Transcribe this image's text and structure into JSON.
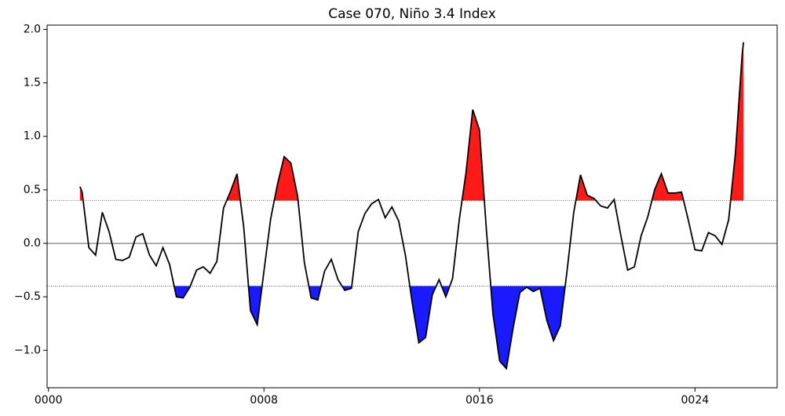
{
  "chart_data": {
    "type": "line",
    "title": "Case 070, Niño 3.4 Index",
    "x": [
      1.17,
      1.25,
      1.5,
      1.75,
      2.0,
      2.25,
      2.5,
      2.75,
      3.0,
      3.25,
      3.5,
      3.75,
      4.0,
      4.25,
      4.5,
      4.75,
      5.0,
      5.25,
      5.5,
      5.75,
      6.0,
      6.25,
      6.5,
      6.75,
      7.0,
      7.25,
      7.5,
      7.75,
      8.0,
      8.25,
      8.5,
      8.75,
      9.0,
      9.25,
      9.5,
      9.75,
      10.0,
      10.25,
      10.5,
      10.75,
      11.0,
      11.25,
      11.5,
      11.75,
      12.0,
      12.25,
      12.5,
      12.75,
      13.0,
      13.25,
      13.5,
      13.75,
      14.0,
      14.25,
      14.5,
      14.75,
      15.0,
      15.25,
      15.5,
      15.75,
      16.0,
      16.25,
      16.5,
      16.75,
      17.0,
      17.25,
      17.5,
      17.75,
      18.0,
      18.25,
      18.5,
      18.75,
      19.0,
      19.25,
      19.5,
      19.75,
      20.0,
      20.25,
      20.5,
      20.75,
      21.0,
      21.25,
      21.5,
      21.75,
      22.0,
      22.25,
      22.5,
      22.75,
      23.0,
      23.25,
      23.5,
      23.75,
      24.0,
      24.25,
      24.5,
      24.75,
      25.0,
      25.25,
      25.5,
      25.75,
      25.8
    ],
    "series": [
      {
        "color": "#000000",
        "values": [
          0.53,
          0.48,
          -0.04,
          -0.11,
          0.29,
          0.11,
          -0.15,
          -0.16,
          -0.13,
          0.06,
          0.09,
          -0.11,
          -0.21,
          -0.04,
          -0.2,
          -0.5,
          -0.51,
          -0.41,
          -0.25,
          -0.22,
          -0.28,
          -0.17,
          0.33,
          0.48,
          0.65,
          0.15,
          -0.63,
          -0.76,
          -0.26,
          0.23,
          0.55,
          0.81,
          0.75,
          0.44,
          -0.18,
          -0.51,
          -0.53,
          -0.26,
          -0.15,
          -0.34,
          -0.44,
          -0.42,
          0.11,
          0.28,
          0.37,
          0.41,
          0.24,
          0.34,
          0.21,
          -0.11,
          -0.55,
          -0.93,
          -0.88,
          -0.48,
          -0.34,
          -0.5,
          -0.33,
          0.22,
          0.66,
          1.25,
          1.06,
          0.15,
          -0.66,
          -1.1,
          -1.17,
          -0.79,
          -0.46,
          -0.41,
          -0.45,
          -0.42,
          -0.72,
          -0.91,
          -0.77,
          -0.26,
          0.29,
          0.64,
          0.45,
          0.42,
          0.35,
          0.33,
          0.41,
          0.07,
          -0.25,
          -0.22,
          0.07,
          0.25,
          0.5,
          0.65,
          0.47,
          0.47,
          0.48,
          0.22,
          -0.06,
          -0.07,
          0.1,
          0.07,
          -0.01,
          0.22,
          0.84,
          1.76,
          1.88
        ]
      }
    ],
    "thresholds": [
      {
        "value": 0.4,
        "color": "#ff1a1a"
      },
      {
        "value": -0.4,
        "color": "#1a1aff"
      }
    ],
    "xlim": [
      -0.05,
      27.05
    ],
    "ylim": [
      -1.35,
      2.04
    ],
    "xticks": [
      {
        "value": 0,
        "label": "0000"
      },
      {
        "value": 8,
        "label": "0008"
      },
      {
        "value": 16,
        "label": "0016"
      },
      {
        "value": 24,
        "label": "0024"
      }
    ],
    "yticks": [
      {
        "value": -1,
        "label": "−1.0"
      },
      {
        "value": -0.5,
        "label": "−0.5"
      },
      {
        "value": 0,
        "label": "0.0"
      },
      {
        "value": 0.5,
        "label": "0.5"
      },
      {
        "value": 1,
        "label": "1.0"
      },
      {
        "value": 1.5,
        "label": "1.5"
      },
      {
        "value": 2,
        "label": "2.0"
      }
    ]
  }
}
